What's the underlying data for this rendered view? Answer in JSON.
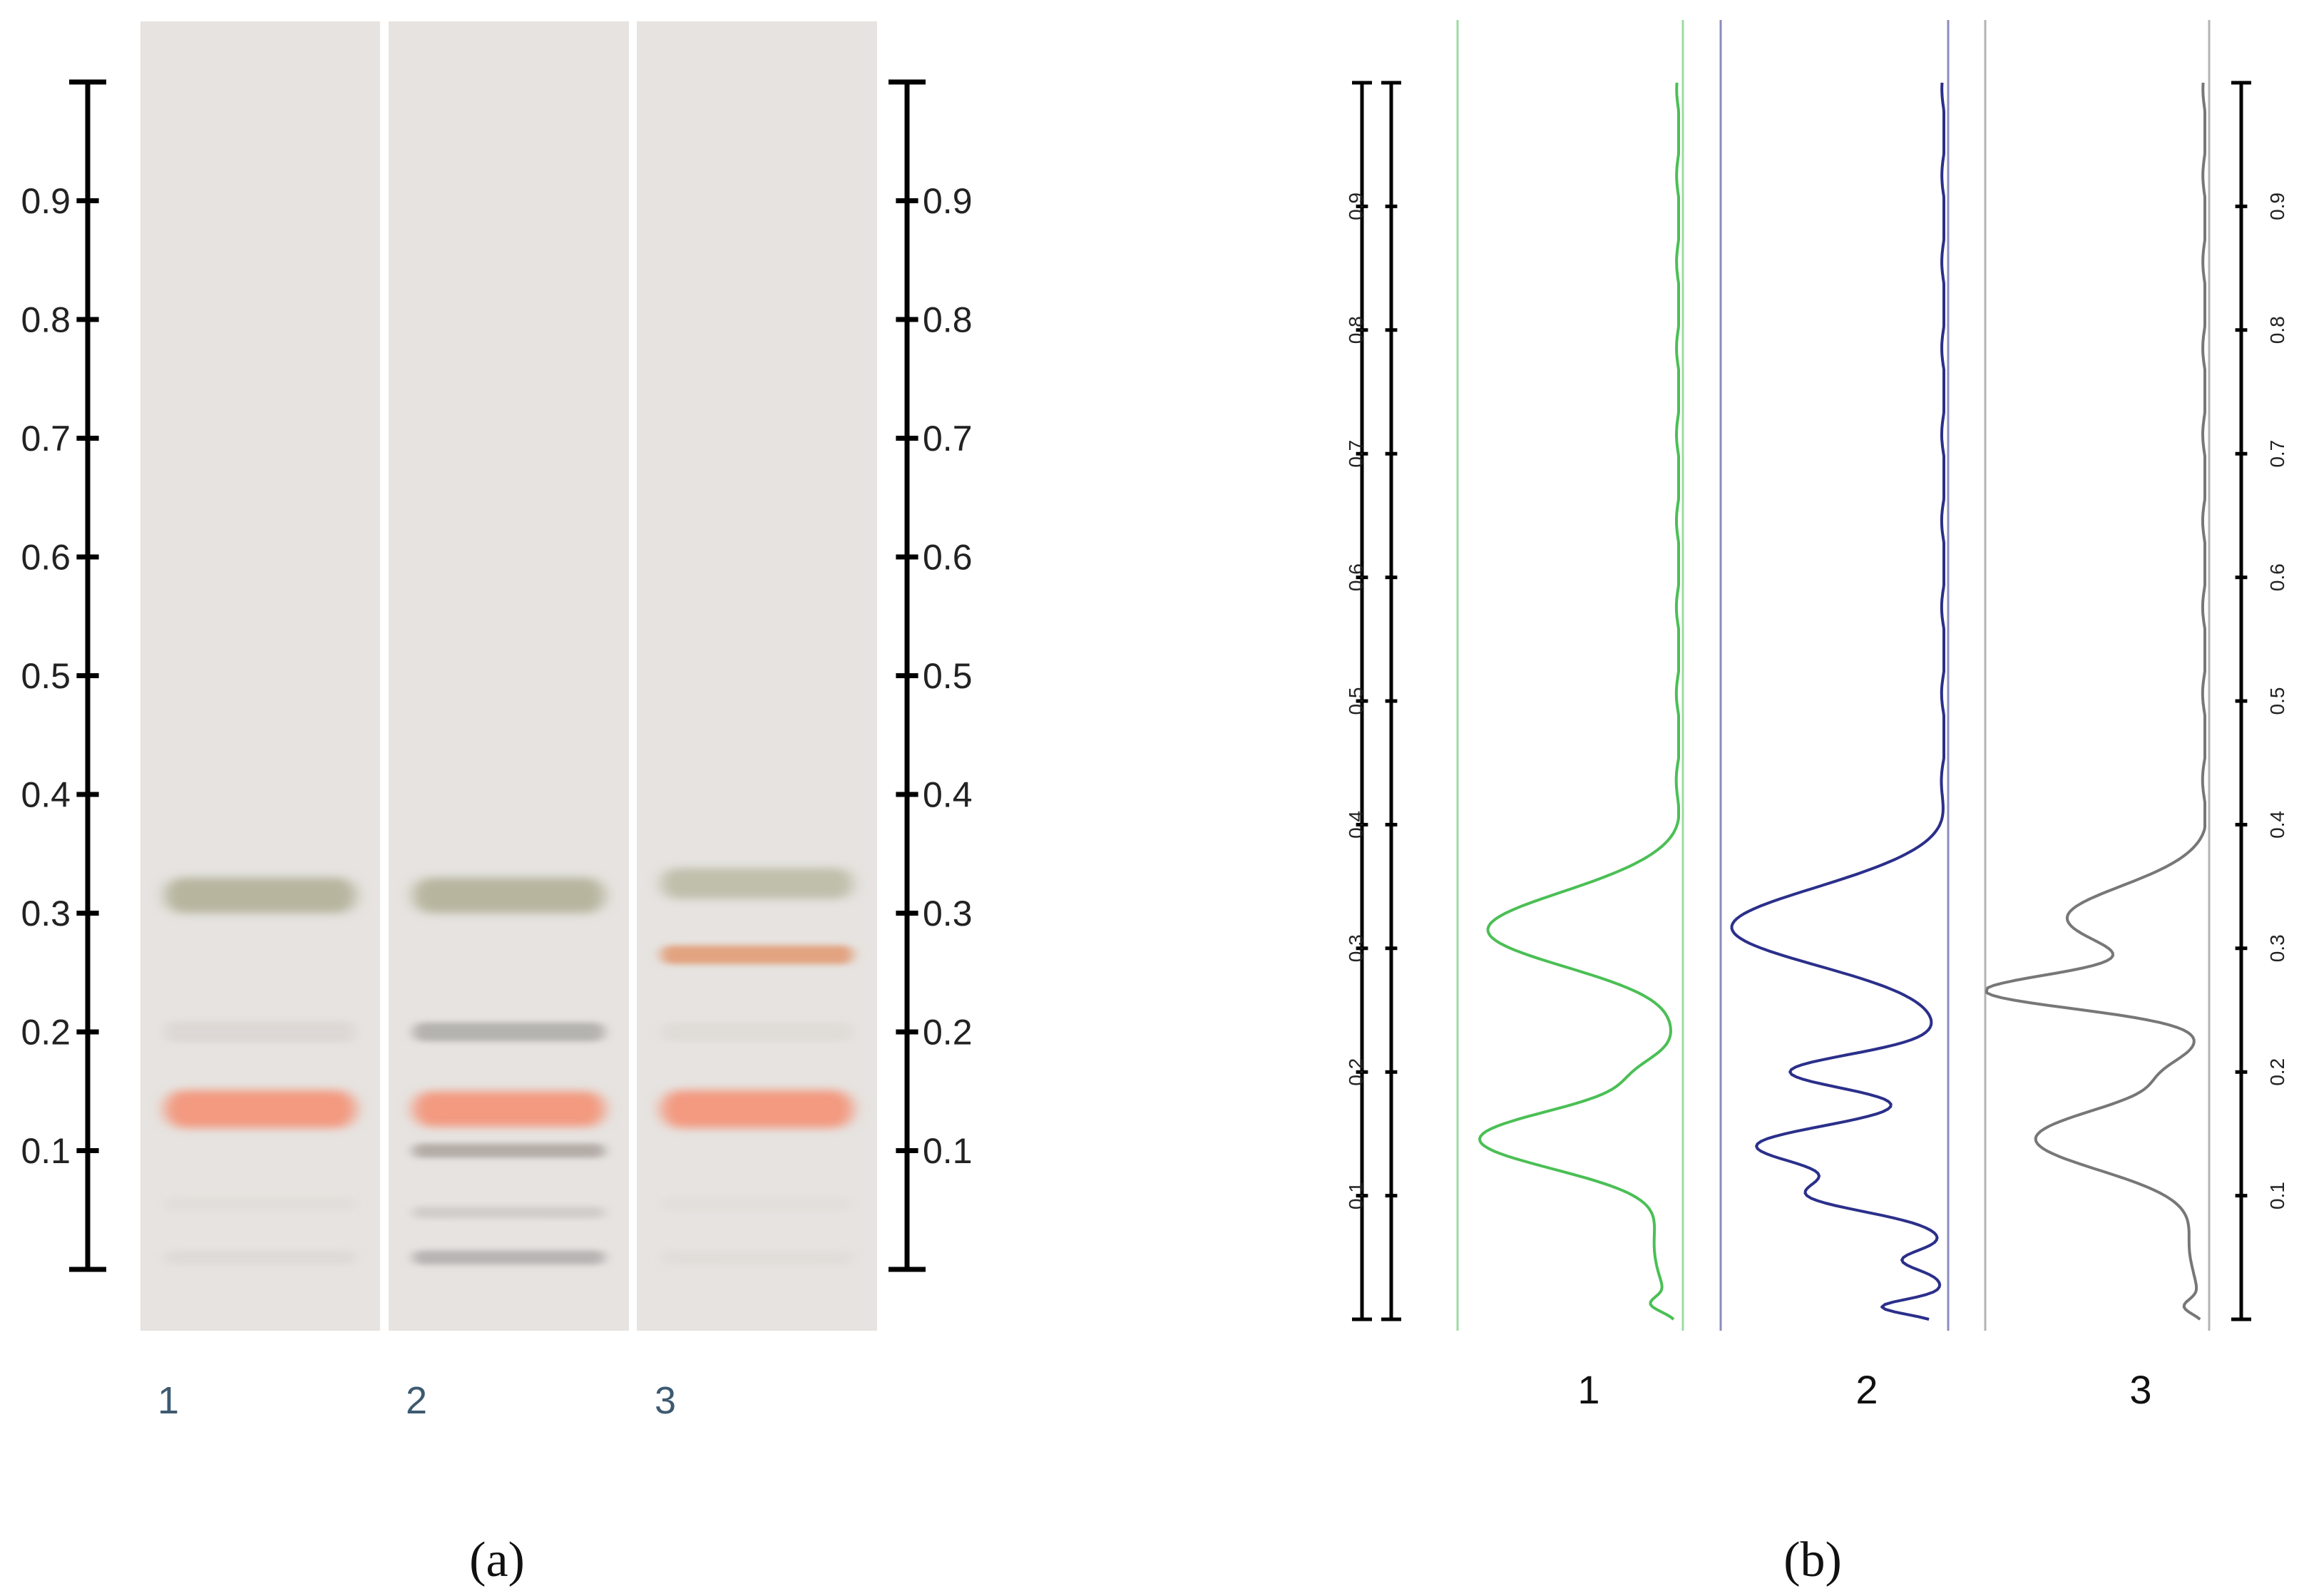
{
  "panel_a": {
    "label": "(a)",
    "lanes": [
      {
        "label": "1",
        "bands": [
          {
            "rf": 0.315,
            "color": "#b3b098",
            "strength": 0.9,
            "width": 0.03
          },
          {
            "rf": 0.2,
            "color": "#cfc8c2",
            "strength": 0.4,
            "width": 0.018
          },
          {
            "rf": 0.135,
            "color": "#f39a80",
            "strength": 1.0,
            "width": 0.032
          },
          {
            "rf": 0.055,
            "color": "#d6d0cc",
            "strength": 0.25,
            "width": 0.012
          },
          {
            "rf": 0.01,
            "color": "#d0ccc9",
            "strength": 0.35,
            "width": 0.012
          }
        ]
      },
      {
        "label": "2",
        "bands": [
          {
            "rf": 0.315,
            "color": "#b3b098",
            "strength": 0.9,
            "width": 0.03
          },
          {
            "rf": 0.2,
            "color": "#a9a7a4",
            "strength": 0.8,
            "width": 0.016
          },
          {
            "rf": 0.135,
            "color": "#f39a80",
            "strength": 1.0,
            "width": 0.03
          },
          {
            "rf": 0.1,
            "color": "#a79f98",
            "strength": 0.8,
            "width": 0.012
          },
          {
            "rf": 0.048,
            "color": "#c1bebb",
            "strength": 0.6,
            "width": 0.01
          },
          {
            "rf": 0.01,
            "color": "#a8a6a4",
            "strength": 0.75,
            "width": 0.012
          }
        ]
      },
      {
        "label": "3",
        "bands": [
          {
            "rf": 0.325,
            "color": "#b9b8a2",
            "strength": 0.85,
            "width": 0.026
          },
          {
            "rf": 0.265,
            "color": "#e2a07c",
            "strength": 0.95,
            "width": 0.016
          },
          {
            "rf": 0.2,
            "color": "#d3cec9",
            "strength": 0.35,
            "width": 0.016
          },
          {
            "rf": 0.135,
            "color": "#f39a80",
            "strength": 1.0,
            "width": 0.032
          },
          {
            "rf": 0.055,
            "color": "#d8d3cf",
            "strength": 0.25,
            "width": 0.012
          },
          {
            "rf": 0.01,
            "color": "#d3cfcc",
            "strength": 0.3,
            "width": 0.012
          }
        ]
      }
    ]
  },
  "panel_b": {
    "label": "(b)",
    "tracks": [
      {
        "label": "1",
        "color": "#4bbf55",
        "peaks": [
          {
            "rf": 0.316,
            "h": 0.87,
            "w": 0.03
          },
          {
            "rf": 0.2,
            "h": 0.14,
            "w": 0.013
          },
          {
            "rf": 0.145,
            "h": 0.9,
            "w": 0.025
          },
          {
            "rf": 0.055,
            "h": 0.12,
            "w": 0.025
          },
          {
            "rf": 0.012,
            "h": 0.09,
            "w": 0.006
          }
        ]
      },
      {
        "label": "2",
        "color": "#2b2f8a",
        "peaks": [
          {
            "rf": 0.318,
            "h": 0.96,
            "w": 0.031
          },
          {
            "rf": 0.2,
            "h": 0.7,
            "w": 0.014
          },
          {
            "rf": 0.14,
            "h": 0.84,
            "w": 0.017
          },
          {
            "rf": 0.1,
            "h": 0.56,
            "w": 0.013
          },
          {
            "rf": 0.048,
            "h": 0.2,
            "w": 0.008
          },
          {
            "rf": 0.01,
            "h": 0.27,
            "w": 0.006
          }
        ]
      },
      {
        "label": "3",
        "color": "#777777",
        "peaks": [
          {
            "rf": 0.325,
            "h": 0.64,
            "w": 0.025
          },
          {
            "rf": 0.265,
            "h": 0.98,
            "w": 0.014
          },
          {
            "rf": 0.2,
            "h": 0.13,
            "w": 0.012
          },
          {
            "rf": 0.145,
            "h": 0.77,
            "w": 0.026
          },
          {
            "rf": 0.055,
            "h": 0.08,
            "w": 0.02
          },
          {
            "rf": 0.01,
            "h": 0.08,
            "w": 0.006
          }
        ]
      }
    ]
  },
  "axis": {
    "ticks": [
      "0.1",
      "0.2",
      "0.3",
      "0.4",
      "0.5",
      "0.6",
      "0.7",
      "0.8",
      "0.9"
    ]
  }
}
